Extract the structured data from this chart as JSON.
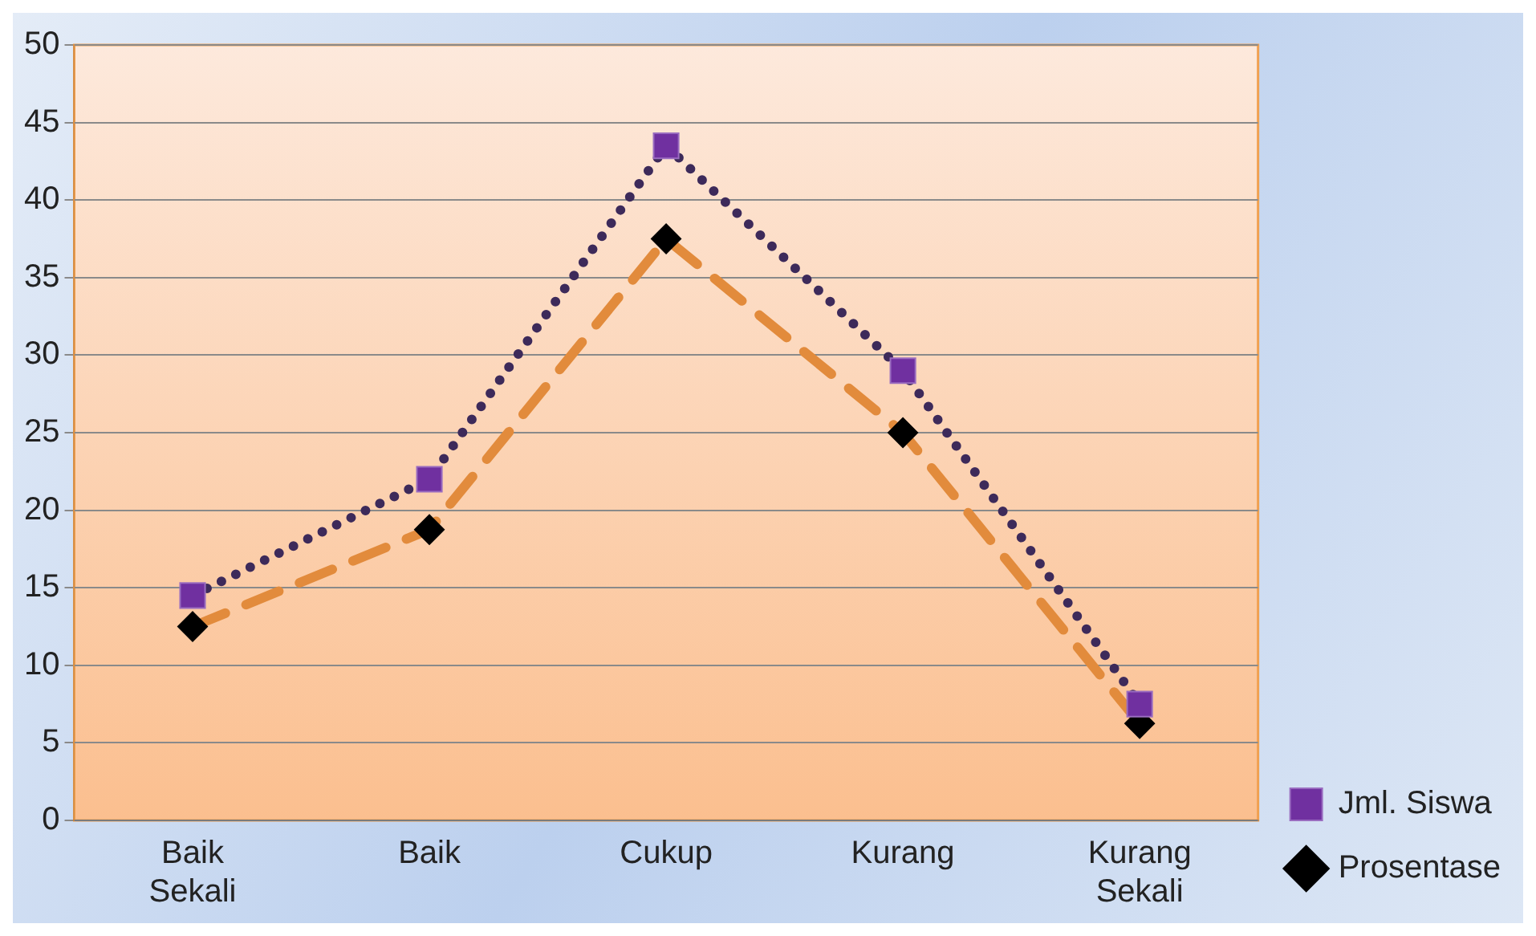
{
  "chart_data": {
    "type": "line",
    "categories": [
      "Baik Sekali",
      "Baik",
      "Cukup",
      "Kurang",
      "Kurang Sekali"
    ],
    "series": [
      {
        "name": "Jml. Siswa",
        "color": "#7030a0",
        "values": [
          14.5,
          22,
          43.5,
          29,
          7.5
        ],
        "marker": "square",
        "line_style": "dotted"
      },
      {
        "name": "Prosentase",
        "color": "#e28b3c",
        "values": [
          12.5,
          18.75,
          37.5,
          25,
          6.25
        ],
        "marker": "diamond",
        "line_style": "dashed"
      }
    ],
    "ylim": [
      0,
      50
    ],
    "yticks": [
      0,
      5,
      10,
      15,
      20,
      25,
      30,
      35,
      40,
      45,
      50
    ],
    "grid": "y",
    "legend": "bottom right"
  }
}
